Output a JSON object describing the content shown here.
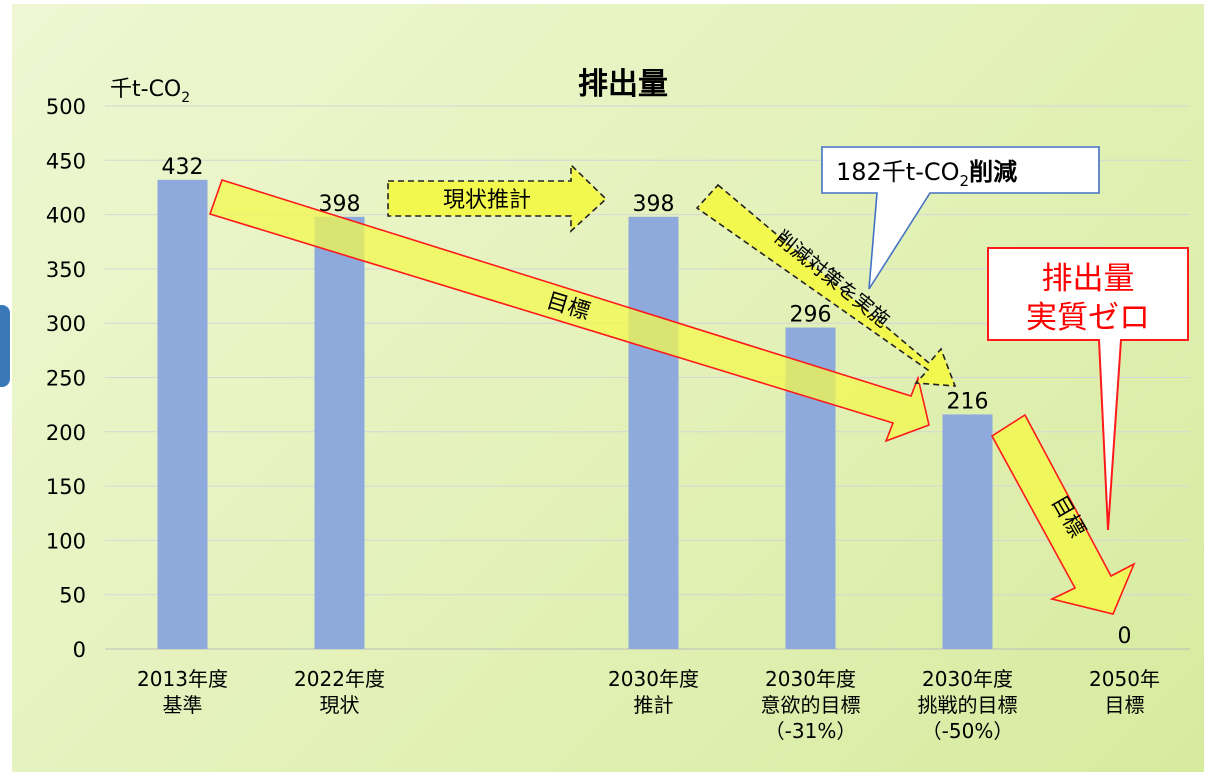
{
  "chart_data": {
    "type": "bar",
    "title": "排出量",
    "yunit_main": "千t-CO",
    "yunit_sub": "2",
    "ylim": [
      0,
      500
    ],
    "yticks": [
      0,
      50,
      100,
      150,
      200,
      250,
      300,
      350,
      400,
      450,
      500
    ],
    "grid": true,
    "categories": [
      {
        "lines": [
          "2013年度",
          "基準"
        ]
      },
      {
        "lines": [
          "2022年度",
          "現状"
        ]
      },
      {
        "lines": []
      },
      {
        "lines": [
          "2030年度",
          "推計"
        ]
      },
      {
        "lines": [
          "2030年度",
          "意欲的目標",
          "（-31%）"
        ]
      },
      {
        "lines": [
          "2030年度",
          "挑戦的目標",
          "（-50%）"
        ]
      },
      {
        "lines": [
          "2050年",
          "目標"
        ]
      }
    ],
    "values": [
      432,
      398,
      null,
      398,
      296,
      216,
      0
    ],
    "data_labels": [
      "432",
      "398",
      "",
      "398",
      "296",
      "216",
      "0"
    ],
    "bar_color": "#8eaadc"
  },
  "annotations": {
    "current_estimate": "現状推計",
    "target_arrow_1": "目標",
    "measures_arrow": "削減対策を実施",
    "target_arrow_2": "目標",
    "reduction_callout_pre": "182千t-CO",
    "reduction_callout_sub": "2",
    "reduction_callout_post": "削減",
    "net_zero_line1": "排出量",
    "net_zero_line2": "実質ゼロ"
  },
  "colors": {
    "arrow_fill": "#f3f84e",
    "arrow_stroke": "#ff1a1a",
    "net_zero_text": "#ff0000",
    "callout_border": "#4472c4",
    "background": "#e3f1b8"
  }
}
